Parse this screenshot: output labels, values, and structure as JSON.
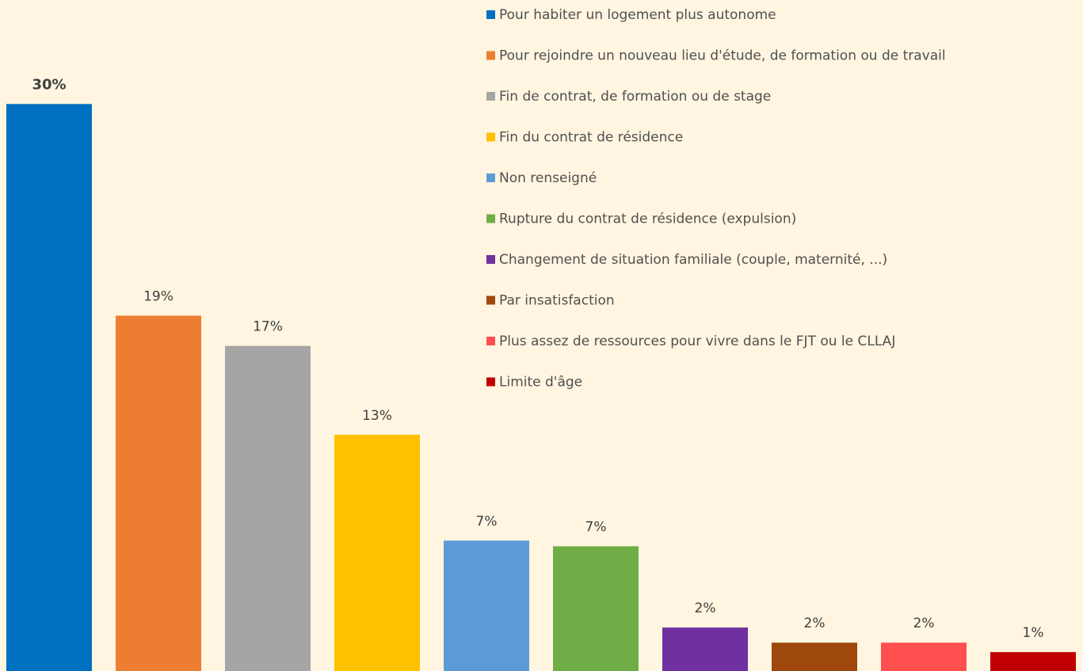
{
  "chart_data": {
    "type": "bar",
    "categories": [
      "Pour habiter un logement plus autonome",
      "Pour rejoindre un nouveau lieu d'étude, de formation ou de travail",
      "Fin de contrat, de formation ou de stage",
      "Fin du contrat de résidence",
      "Non renseigné",
      "Rupture du contrat de résidence (expulsion)",
      "Changement de situation familiale (couple, maternité, ...)",
      "Par insatisfaction",
      "Plus assez de ressources pour vivre dans le FJT ou le CLLAJ",
      "Limite d'âge"
    ],
    "values": [
      30,
      18.8,
      17.2,
      12.5,
      6.9,
      6.6,
      2.3,
      1.5,
      1.5,
      1.0
    ],
    "value_labels": [
      "30%",
      "19%",
      "17%",
      "13%",
      "7%",
      "7%",
      "2%",
      "2%",
      "2%",
      "1%"
    ],
    "colors": [
      "#0070c0",
      "#ed7d31",
      "#a5a5a5",
      "#ffc000",
      "#5b9bd5",
      "#70ad47",
      "#7030a0",
      "#9e480e",
      "#ff5050",
      "#c00000"
    ],
    "ylim": [
      0,
      35
    ],
    "grid": false
  }
}
